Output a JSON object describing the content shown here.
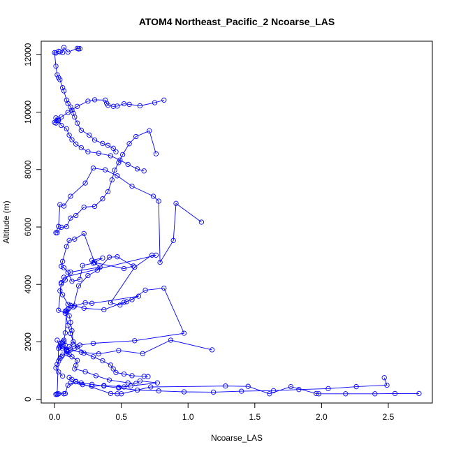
{
  "chart_data": {
    "type": "line",
    "title": "ATOM4 Northeast_Pacific_2 Ncoarse_LAS",
    "xlabel": "Ncoarse_LAS",
    "ylabel": "Altitude (m)",
    "xlim": [
      -0.1,
      2.83
    ],
    "ylim": [
      -130,
      12470
    ],
    "xticks": [
      0.0,
      0.5,
      1.0,
      1.5,
      2.0,
      2.5
    ],
    "xtick_labels": [
      "0.0",
      "0.5",
      "1.0",
      "1.5",
      "2.0",
      "2.5"
    ],
    "yticks": [
      0,
      2000,
      4000,
      6000,
      8000,
      10000,
      12000
    ],
    "ytick_labels": [
      "0",
      "2000",
      "4000",
      "6000",
      "8000",
      "10000",
      "12000"
    ],
    "grid": false,
    "legend": "none",
    "color": "#0000ff",
    "marker": "open-circle",
    "series": [
      {
        "x": [
          0.01,
          0.02,
          0.03,
          0.05,
          0.07,
          0.08,
          0.09,
          0.1,
          0.12,
          0.15,
          0.23,
          0.28,
          0.63,
          0.54,
          0.49,
          0.42,
          0.6,
          0.73,
          0.76,
          0.07,
          0.05,
          0.03,
          0.08,
          0.14,
          0.18,
          0.25,
          0.32,
          0.41,
          0.47,
          0.59,
          0.52,
          0.3,
          0.22,
          0.15,
          0.11,
          0.09,
          0.06,
          0.05,
          0.07,
          0.1,
          0.13,
          0.19,
          0.21,
          0.29,
          0.36,
          0.28,
          0.34,
          0.12,
          0.08,
          0.05,
          0.04,
          0.06,
          0.1,
          0.22,
          0.37,
          0.52,
          0.58,
          0.68,
          0.82,
          0.97,
          0.6,
          0.29,
          0.19,
          0.15,
          0.12,
          0.1,
          0.09,
          0.06,
          0.05,
          0.04,
          0.03,
          0.02,
          0.01,
          0.03,
          0.06
        ],
        "y": [
          170,
          190,
          1780,
          1950,
          2060,
          2310,
          3080,
          3140,
          3270,
          3250,
          3360,
          3340,
          3590,
          3400,
          3280,
          3360,
          4600,
          5020,
          5020,
          4250,
          4060,
          3100,
          3000,
          3210,
          3950,
          4310,
          4490,
          4950,
          4960,
          4640,
          4550,
          4760,
          5770,
          5580,
          5530,
          5320,
          4800,
          4630,
          4580,
          4420,
          4110,
          4170,
          4660,
          4740,
          4920,
          4840,
          4600,
          4430,
          4150,
          4020,
          3780,
          3640,
          3310,
          3170,
          3120,
          3380,
          3470,
          3800,
          3870,
          2300,
          2040,
          1950,
          1890,
          1780,
          1720,
          1650,
          1590,
          1540,
          1480,
          1410,
          1330,
          1220,
          1090,
          950,
          810
        ]
      },
      {
        "x": [
          2.73,
          2.55,
          2.4,
          2.18,
          1.98,
          1.96,
          1.77,
          1.61,
          1.45,
          1.28,
          0.72,
          0.5,
          0.47,
          0.42,
          0.16,
          0.1,
          0.08,
          0.07,
          0.03,
          0.02
        ],
        "y": [
          200,
          200,
          190,
          190,
          190,
          200,
          440,
          190,
          450,
          460,
          430,
          190,
          190,
          200,
          610,
          490,
          200,
          190,
          190,
          170
        ]
      },
      {
        "x": [
          1.18,
          0.87,
          0.66,
          0.48,
          0.33,
          0.2,
          0.09,
          0.08,
          0.07,
          0.06,
          0.05,
          0.04,
          0.06,
          0.09,
          0.11,
          0.13,
          0.17,
          0.16,
          0.15,
          0.23,
          0.31,
          0.41,
          0.55,
          0.61,
          0.64,
          0.77,
          0.48,
          0.57,
          0.52,
          0.37,
          0.28,
          0.21,
          0.12
        ],
        "y": [
          1720,
          2060,
          1590,
          1700,
          1580,
          1640,
          1730,
          1880,
          2000,
          1990,
          1960,
          1860,
          1760,
          1680,
          1560,
          1480,
          1350,
          1180,
          1060,
          960,
          820,
          670,
          570,
          550,
          640,
          570,
          420,
          460,
          430,
          480,
          450,
          510,
          570
        ]
      },
      {
        "x": [
          1.1,
          0.91,
          0.89,
          0.79,
          0.78,
          0.74,
          0.58,
          0.47,
          0.38,
          0.29,
          0.23,
          0.12,
          0.07,
          0.04,
          0.03,
          0.01,
          0.02,
          0.05,
          0.09,
          0.12,
          0.16,
          0.22,
          0.3,
          0.36,
          0.4,
          0.43,
          0.45,
          0.48,
          0.51,
          0.56,
          0.61,
          0.71,
          0.76
        ],
        "y": [
          6170,
          6820,
          5530,
          4770,
          6900,
          7070,
          7420,
          7780,
          7990,
          8050,
          7530,
          7070,
          6730,
          6780,
          6020,
          5800,
          5800,
          5990,
          6010,
          6310,
          6400,
          6690,
          6720,
          6980,
          7230,
          7640,
          7980,
          8240,
          8520,
          8900,
          9150,
          9350,
          8550
        ]
      },
      {
        "x": [
          0.82,
          0.75,
          0.64,
          0.56,
          0.52,
          0.47,
          0.44,
          0.4,
          0.39,
          0.38,
          0.3,
          0.25,
          0.17,
          0.1,
          0.05,
          0.03,
          0.02,
          0.01,
          0.0,
          0.01,
          0.03,
          0.05,
          0.09,
          0.11,
          0.13,
          0.16,
          0.2,
          0.25,
          0.33,
          0.42,
          0.49,
          0.55,
          0.62,
          0.67
        ],
        "y": [
          10420,
          10330,
          10220,
          10270,
          10290,
          10210,
          10200,
          10240,
          10310,
          10420,
          10430,
          10380,
          10200,
          9990,
          9830,
          9760,
          9710,
          9620,
          9640,
          9800,
          9700,
          9540,
          9420,
          9200,
          9040,
          8890,
          8760,
          8620,
          8570,
          8480,
          8330,
          8180,
          8020,
          7950
        ]
      },
      {
        "x": [
          0.18,
          0.19,
          0.17,
          0.1,
          0.07,
          0.06,
          0.04,
          0.03,
          0.01,
          0.0,
          0.01,
          0.02,
          0.03,
          0.04,
          0.06,
          0.07,
          0.09,
          0.1,
          0.12,
          0.13,
          0.14,
          0.15,
          0.17,
          0.2,
          0.26,
          0.3,
          0.36,
          0.4,
          0.44,
          0.46
        ],
        "y": [
          12200,
          12210,
          12220,
          12090,
          12250,
          12070,
          12100,
          12120,
          12060,
          12070,
          11600,
          11300,
          11200,
          11130,
          10850,
          10740,
          10420,
          10300,
          10180,
          10070,
          9960,
          9830,
          9620,
          9370,
          9200,
          9030,
          8910,
          8840,
          8740,
          8620
        ]
      },
      {
        "x": [
          0.02,
          0.04,
          0.06,
          0.09,
          0.11,
          0.14,
          0.13,
          0.12,
          0.11,
          0.1,
          0.08,
          0.1,
          0.12,
          0.14,
          0.17,
          0.22,
          0.29,
          0.36,
          0.42,
          0.44,
          0.46,
          0.52,
          0.58,
          0.67,
          0.7
        ],
        "y": [
          2060,
          1810,
          1830,
          1710,
          1830,
          1920,
          2390,
          2680,
          2910,
          3130,
          3070,
          2570,
          2290,
          2000,
          1820,
          1610,
          1480,
          1340,
          1190,
          1060,
          930,
          880,
          820,
          800,
          790
        ]
      },
      {
        "x": [
          2.47,
          2.49,
          2.26,
          2.05,
          1.83,
          1.64,
          1.4,
          1.19,
          0.97,
          0.78,
          0.62,
          0.48,
          0.37,
          0.28,
          0.2,
          0.16,
          0.13,
          0.11
        ],
        "y": [
          750,
          490,
          440,
          370,
          340,
          300,
          280,
          250,
          260,
          290,
          320,
          390,
          460,
          520,
          570,
          620,
          690,
          760
        ]
      }
    ]
  }
}
